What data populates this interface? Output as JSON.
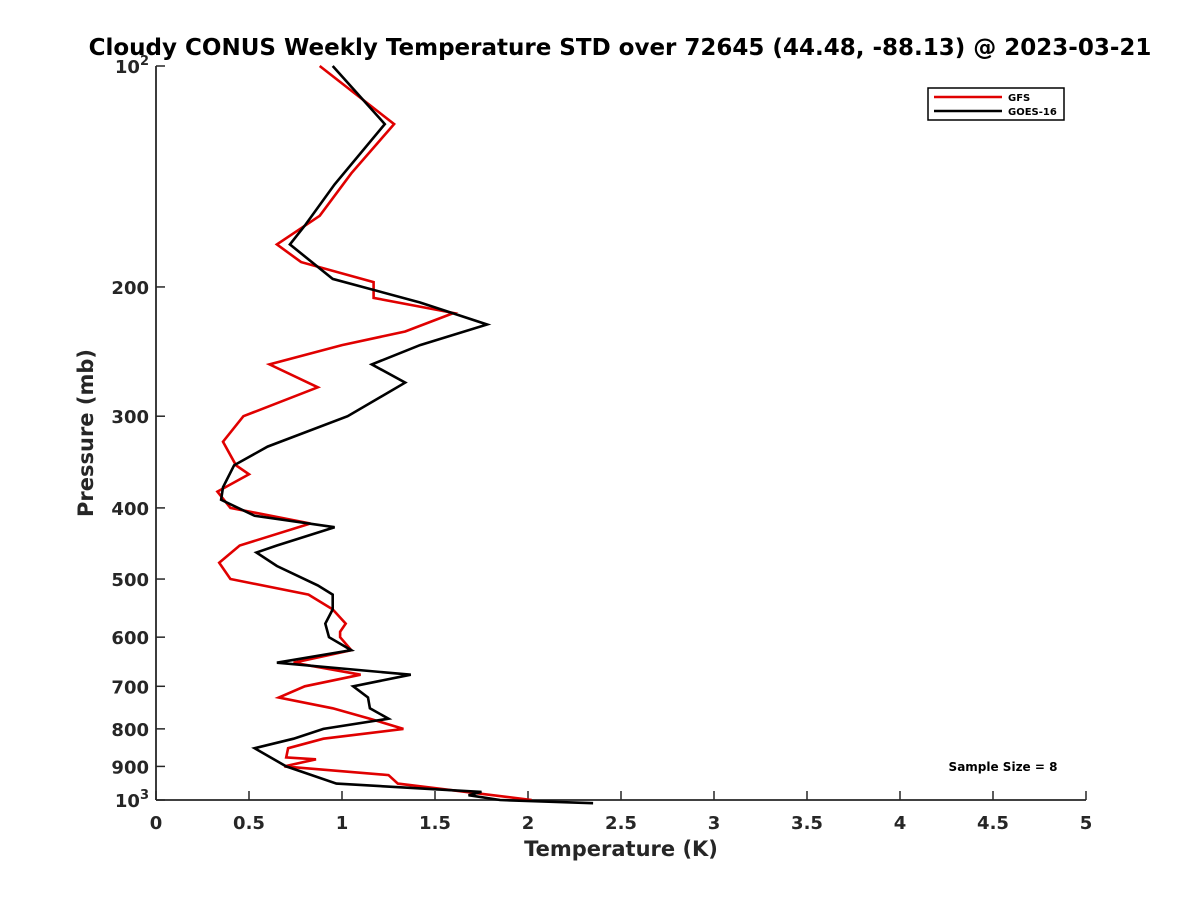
{
  "chart_data": {
    "type": "line",
    "title": "Cloudy CONUS Weekly Temperature STD over 72645 (44.48, -88.13) @ 2023-03-21",
    "xlabel": "Temperature (K)",
    "ylabel": "Pressure (mb)",
    "xlim": [
      0,
      5
    ],
    "ylim": [
      100,
      1000
    ],
    "y_scale": "log",
    "y_reversed": true,
    "grid": false,
    "legend_position": "top-right",
    "x_ticks": [
      0,
      0.5,
      1,
      1.5,
      2,
      2.5,
      3,
      3.5,
      4,
      4.5,
      5
    ],
    "x_tick_labels": [
      "0",
      "0.5",
      "1",
      "1.5",
      "2",
      "2.5",
      "3",
      "3.5",
      "4",
      "4.5",
      "5"
    ],
    "y_ticks": [
      100,
      200,
      300,
      400,
      500,
      600,
      700,
      800,
      900,
      1000
    ],
    "y_tick_labels": [
      {
        "base": "10",
        "exp": "2"
      },
      {
        "base": "200",
        "exp": ""
      },
      {
        "base": "300",
        "exp": ""
      },
      {
        "base": "400",
        "exp": ""
      },
      {
        "base": "500",
        "exp": ""
      },
      {
        "base": "600",
        "exp": ""
      },
      {
        "base": "700",
        "exp": ""
      },
      {
        "base": "800",
        "exp": ""
      },
      {
        "base": "900",
        "exp": ""
      },
      {
        "base": "10",
        "exp": "3"
      }
    ],
    "annotation": "Sample Size = 8",
    "series": [
      {
        "name": "GFS",
        "color": "#e00000",
        "points": [
          [
            0.88,
            100
          ],
          [
            1.28,
            120
          ],
          [
            1.05,
            140
          ],
          [
            0.88,
            160
          ],
          [
            0.65,
            175
          ],
          [
            0.78,
            185
          ],
          [
            1.17,
            197
          ],
          [
            1.17,
            207
          ],
          [
            1.6,
            217
          ],
          [
            1.34,
            230
          ],
          [
            1.0,
            240
          ],
          [
            0.61,
            255
          ],
          [
            0.87,
            274
          ],
          [
            0.47,
            300
          ],
          [
            0.36,
            325
          ],
          [
            0.43,
            350
          ],
          [
            0.5,
            360
          ],
          [
            0.33,
            380
          ],
          [
            0.4,
            400
          ],
          [
            0.83,
            420
          ],
          [
            0.45,
            450
          ],
          [
            0.34,
            475
          ],
          [
            0.4,
            500
          ],
          [
            0.82,
            525
          ],
          [
            0.95,
            550
          ],
          [
            1.02,
            575
          ],
          [
            0.99,
            590
          ],
          [
            0.99,
            600
          ],
          [
            1.05,
            625
          ],
          [
            0.74,
            650
          ],
          [
            1.1,
            675
          ],
          [
            0.8,
            700
          ],
          [
            0.66,
            725
          ],
          [
            0.95,
            750
          ],
          [
            1.15,
            775
          ],
          [
            1.33,
            800
          ],
          [
            0.9,
            825
          ],
          [
            0.71,
            850
          ],
          [
            0.7,
            875
          ],
          [
            0.86,
            880
          ],
          [
            0.69,
            900
          ],
          [
            1.25,
            925
          ],
          [
            1.3,
            950
          ],
          [
            2.02,
            1000
          ]
        ]
      },
      {
        "name": "GOES-16",
        "color": "#000000",
        "points": [
          [
            0.95,
            100
          ],
          [
            1.23,
            120
          ],
          [
            0.96,
            145
          ],
          [
            0.8,
            165
          ],
          [
            0.72,
            175
          ],
          [
            0.95,
            195
          ],
          [
            1.42,
            210
          ],
          [
            1.78,
            225
          ],
          [
            1.42,
            240
          ],
          [
            1.16,
            255
          ],
          [
            1.34,
            270
          ],
          [
            1.03,
            300
          ],
          [
            0.6,
            330
          ],
          [
            0.42,
            350
          ],
          [
            0.36,
            375
          ],
          [
            0.35,
            390
          ],
          [
            0.53,
            410
          ],
          [
            0.96,
            425
          ],
          [
            0.65,
            450
          ],
          [
            0.54,
            460
          ],
          [
            0.65,
            480
          ],
          [
            0.87,
            510
          ],
          [
            0.95,
            525
          ],
          [
            0.95,
            550
          ],
          [
            0.91,
            575
          ],
          [
            0.93,
            600
          ],
          [
            1.05,
            625
          ],
          [
            0.65,
            650
          ],
          [
            1.37,
            675
          ],
          [
            1.06,
            700
          ],
          [
            1.14,
            725
          ],
          [
            1.15,
            750
          ],
          [
            1.25,
            775
          ],
          [
            0.9,
            800
          ],
          [
            0.74,
            825
          ],
          [
            0.53,
            850
          ],
          [
            0.7,
            900
          ],
          [
            0.97,
            950
          ],
          [
            1.75,
            975
          ],
          [
            1.68,
            985
          ],
          [
            1.85,
            1000
          ],
          [
            2.35,
            1010
          ]
        ]
      }
    ]
  }
}
